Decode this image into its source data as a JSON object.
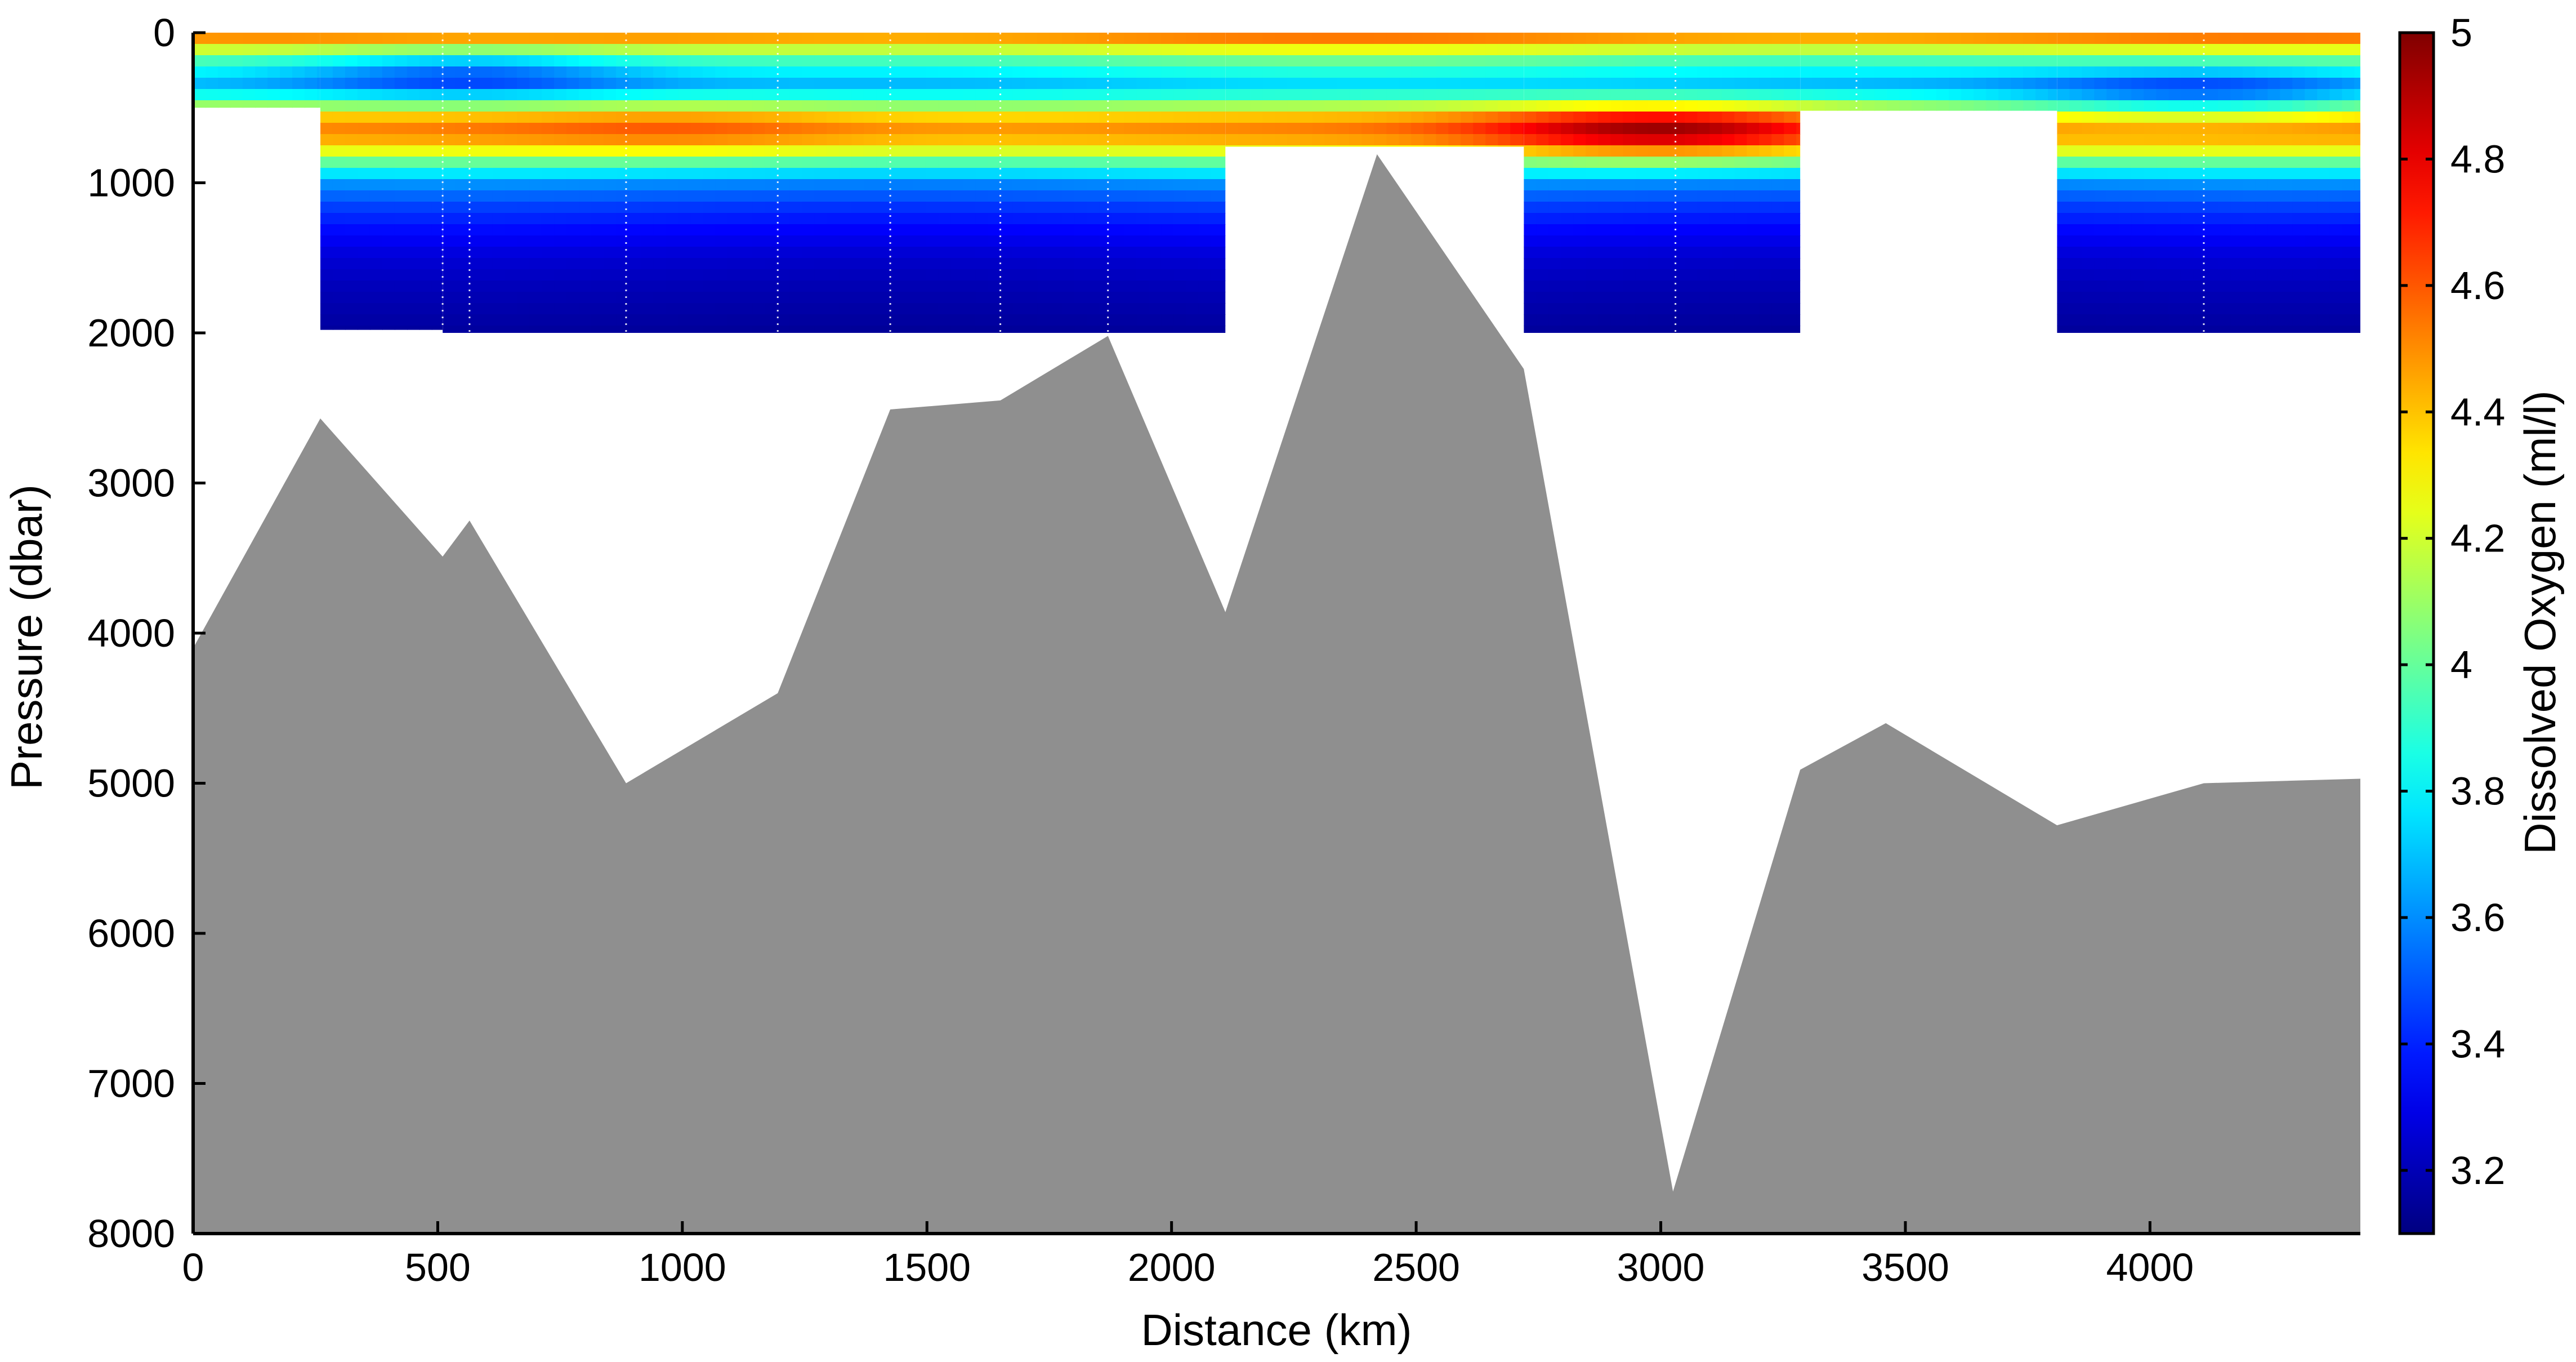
{
  "chart_data": {
    "type": "heatmap",
    "xlabel": "Distance (km)",
    "ylabel": "Pressure (dbar)",
    "xlim": [
      0,
      4430
    ],
    "ylim": [
      8000,
      0
    ],
    "y_reversed": true,
    "xticks": [
      0,
      500,
      1000,
      1500,
      2000,
      2500,
      3000,
      3500,
      4000
    ],
    "yticks": [
      0,
      1000,
      2000,
      3000,
      4000,
      5000,
      6000,
      7000,
      8000
    ],
    "colorbar": {
      "label": "Dissolved Oxygen (ml/l)",
      "min": 3.1,
      "max": 5.0,
      "ticks": [
        3.2,
        3.4,
        3.6,
        3.8,
        4,
        4.2,
        4.4,
        4.6,
        4.8,
        5
      ],
      "tick_labels": [
        "3.2",
        "3.4",
        "3.6",
        "3.8",
        "4",
        "4.2",
        "4.4",
        "4.6",
        "4.8",
        "5"
      ],
      "colormap": "jet"
    },
    "stations_km": [
      510,
      565,
      885,
      1195,
      1425,
      1650,
      1870,
      3030,
      3400,
      4110
    ],
    "data_blocks": [
      {
        "x": [
          0,
          260
        ],
        "max_depth": 500
      },
      {
        "x": [
          260,
          510
        ],
        "max_depth": 1980
      },
      {
        "x": [
          510,
          2110
        ],
        "max_depth": 2000
      },
      {
        "x": [
          2110,
          2720
        ],
        "max_depth": 760
      },
      {
        "x": [
          2720,
          3285
        ],
        "max_depth": 2000
      },
      {
        "x": [
          3285,
          3810
        ],
        "max_depth": 520
      },
      {
        "x": [
          3810,
          4430
        ],
        "max_depth": 2000
      }
    ],
    "oxygen_profile": {
      "depth": [
        0,
        60,
        150,
        250,
        350,
        450,
        550,
        620,
        700,
        800,
        900,
        1000,
        1150,
        1300,
        1500,
        1700,
        2000
      ],
      "values": [
        4.55,
        4.45,
        4.05,
        3.85,
        3.7,
        3.95,
        4.35,
        4.5,
        4.45,
        4.2,
        3.85,
        3.6,
        3.45,
        3.35,
        3.25,
        3.2,
        3.15
      ]
    },
    "oxygen_maxima": [
      {
        "x": 3000,
        "depth": 650,
        "value": 4.95
      },
      {
        "x": 1000,
        "depth": 630,
        "value": 4.6
      }
    ],
    "oxygen_minima": [
      {
        "x": 550,
        "depth": 260,
        "value": 3.5
      },
      {
        "x": 4100,
        "depth": 420,
        "value": 3.55
      }
    ],
    "bathymetry": {
      "x": [
        0,
        260,
        510,
        565,
        885,
        1195,
        1425,
        1650,
        1870,
        2110,
        2420,
        2720,
        3025,
        3285,
        3460,
        3810,
        4110,
        4430
      ],
      "depth": [
        4100,
        2570,
        3490,
        3250,
        5000,
        4400,
        2510,
        2450,
        2020,
        3860,
        810,
        2240,
        7720,
        4910,
        4600,
        5280,
        5000,
        4970
      ],
      "color": "#8f8f8f"
    }
  }
}
